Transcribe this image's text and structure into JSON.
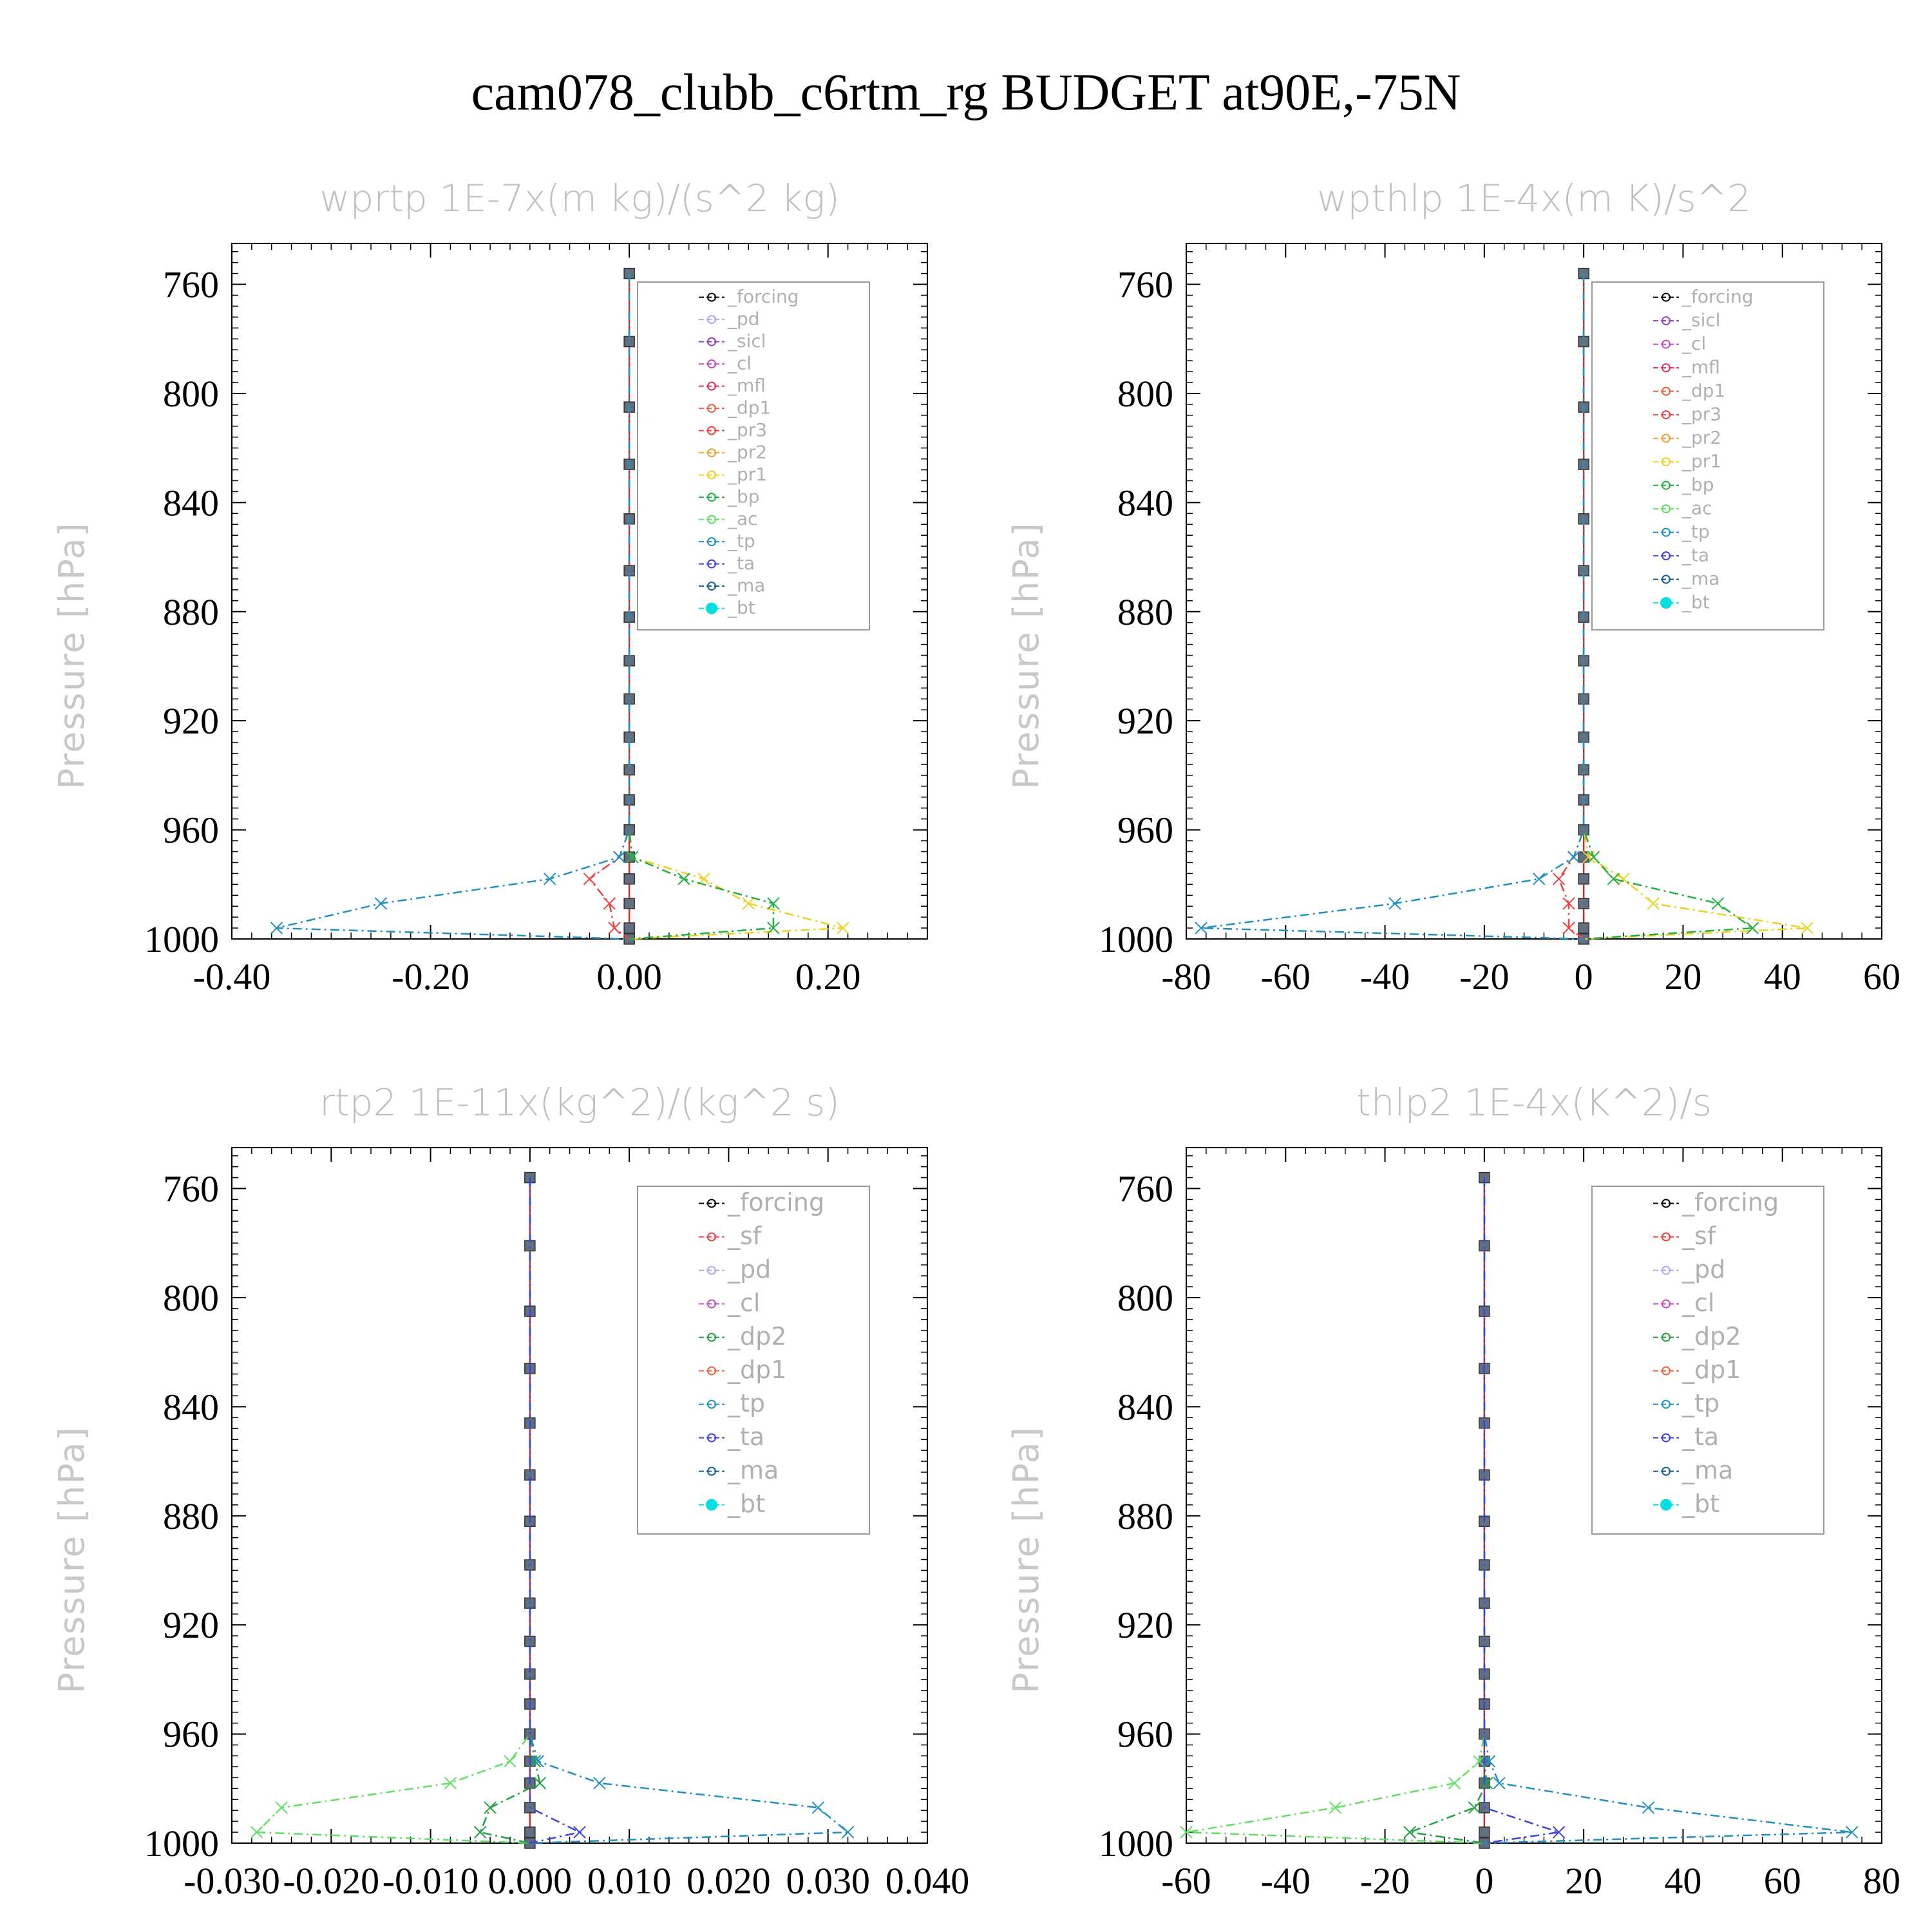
{
  "title": "cam078_clubb_c6rtm_rg  BUDGET at90E,-75N",
  "colors": {
    "forcing": "#000000",
    "pd": "#b0a8e8",
    "sicl": "#9040c0",
    "cl": "#c050c0",
    "mfl": "#e03060",
    "dp1": "#f06040",
    "pr3": "#f04040",
    "pr2": "#f0a030",
    "pr1": "#f0d020",
    "bp": "#20b040",
    "ac": "#60e060",
    "tp": "#2090c0",
    "ta": "#4040e0",
    "ma": "#106090",
    "bt": "#00e0e0",
    "sf": "#f04040",
    "dp2": "#20a040"
  },
  "chart_data": [
    {
      "type": "line",
      "title": "wprtp  1E-7x(m kg)/(s^2 kg)",
      "ylabel": "Pressure [hPa]",
      "ylim": [
        1000,
        745
      ],
      "yticks": [
        "760",
        "800",
        "840",
        "880",
        "920",
        "960",
        "1000"
      ],
      "xlim": [
        -0.4,
        0.3
      ],
      "xticks": [
        "-0.40",
        "-0.20",
        "0.00",
        "0.20"
      ],
      "xtick_values": [
        -0.4,
        -0.2,
        0.0,
        0.2
      ],
      "levels": [
        756,
        781,
        805,
        826,
        846,
        865,
        882,
        898,
        912,
        926,
        938,
        949,
        960,
        970,
        978,
        987,
        996,
        1000
      ],
      "legend": [
        "_forcing",
        "_pd",
        "_sicl",
        "_cl",
        "_mfl",
        "_dp1",
        "_pr3",
        "_pr2",
        "_pr1",
        "_bp",
        "_ac",
        "_tp",
        "_ta",
        "_ma",
        "_bt"
      ],
      "series": [
        {
          "name": "_pr1",
          "color_key": "pr1",
          "values": [
            0,
            0,
            0,
            0,
            0,
            0,
            0,
            0,
            0,
            0,
            0,
            0,
            0,
            0.003,
            0.075,
            0.12,
            0.215,
            0
          ]
        },
        {
          "name": "_bp",
          "color_key": "bp",
          "values": [
            0,
            0,
            0,
            0,
            0,
            0,
            0,
            0,
            0,
            0,
            0,
            0,
            0,
            0.003,
            0.055,
            0.145,
            0.145,
            0
          ]
        },
        {
          "name": "_pr3",
          "color_key": "pr3",
          "values": [
            0,
            0,
            0,
            0,
            0,
            0,
            0,
            0,
            0,
            0,
            0,
            0,
            0,
            -0.01,
            -0.04,
            -0.02,
            -0.015,
            0
          ]
        },
        {
          "name": "_tp",
          "color_key": "tp",
          "values": [
            0,
            0,
            0,
            0,
            0,
            0,
            0,
            0,
            0,
            0,
            0,
            0,
            0,
            -0.01,
            -0.08,
            -0.25,
            -0.355,
            0
          ]
        }
      ]
    },
    {
      "type": "line",
      "title": "wpthlp  1E-4x(m K)/s^2",
      "ylabel": "Pressure [hPa]",
      "ylim": [
        1000,
        745
      ],
      "yticks": [
        "760",
        "800",
        "840",
        "880",
        "920",
        "960",
        "1000"
      ],
      "xlim": [
        -80,
        60
      ],
      "xticks": [
        "-80",
        "-60",
        "-40",
        "-20",
        "0",
        "20",
        "40",
        "60"
      ],
      "xtick_values": [
        -80,
        -60,
        -40,
        -20,
        0,
        20,
        40,
        60
      ],
      "levels": [
        756,
        781,
        805,
        826,
        846,
        865,
        882,
        898,
        912,
        926,
        938,
        949,
        960,
        970,
        978,
        987,
        996,
        1000
      ],
      "legend": [
        "_forcing",
        "_sicl",
        "_cl",
        "_mfl",
        "_dp1",
        "_pr3",
        "_pr2",
        "_pr1",
        "_bp",
        "_ac",
        "_tp",
        "_ta",
        "_ma",
        "_bt"
      ],
      "series": [
        {
          "name": "_pr1",
          "color_key": "pr1",
          "values": [
            0,
            0,
            0,
            0,
            0,
            0,
            0,
            0,
            0,
            0,
            0,
            0,
            0,
            1,
            8,
            14,
            45,
            0
          ]
        },
        {
          "name": "_bp",
          "color_key": "bp",
          "values": [
            0,
            0,
            0,
            0,
            0,
            0,
            0,
            0,
            0,
            0,
            0,
            0,
            0,
            2,
            6,
            27,
            34,
            0
          ]
        },
        {
          "name": "_pr3",
          "color_key": "pr3",
          "values": [
            0,
            0,
            0,
            0,
            0,
            0,
            0,
            0,
            0,
            0,
            0,
            0,
            0,
            -2,
            -5,
            -3,
            -3,
            0
          ]
        },
        {
          "name": "_tp",
          "color_key": "tp",
          "values": [
            0,
            0,
            0,
            0,
            0,
            0,
            0,
            0,
            0,
            0,
            0,
            0,
            0,
            -2,
            -9,
            -38,
            -77,
            0
          ]
        }
      ]
    },
    {
      "type": "line",
      "title": "rtp2  1E-11x(kg^2)/(kg^2 s)",
      "ylabel": "Pressure [hPa]",
      "ylim": [
        1000,
        745
      ],
      "yticks": [
        "760",
        "800",
        "840",
        "880",
        "920",
        "960",
        "1000"
      ],
      "xlim": [
        -0.03,
        0.04
      ],
      "xticks": [
        "-0.030",
        "-0.020",
        "-0.010",
        "0.000",
        "0.010",
        "0.020",
        "0.030",
        "0.040"
      ],
      "xtick_values": [
        -0.03,
        -0.02,
        -0.01,
        0.0,
        0.01,
        0.02,
        0.03,
        0.04
      ],
      "levels": [
        756,
        781,
        805,
        826,
        846,
        865,
        882,
        898,
        912,
        926,
        938,
        949,
        960,
        970,
        978,
        987,
        996,
        1000
      ],
      "legend": [
        "_forcing",
        "_sf",
        "_pd",
        "_cl",
        "_dp2",
        "_dp1",
        "_tp",
        "_ta",
        "_ma",
        "_bt"
      ],
      "series": [
        {
          "name": "_dp1",
          "color_key": "ac",
          "values": [
            0,
            0,
            0,
            0,
            0,
            0,
            0,
            0,
            0,
            0,
            0,
            0,
            0,
            -0.002,
            -0.008,
            -0.025,
            -0.0275,
            0
          ]
        },
        {
          "name": "_dp2",
          "color_key": "dp2",
          "values": [
            0,
            0,
            0,
            0,
            0,
            0,
            0,
            0,
            0,
            0,
            0,
            0,
            0,
            0.0005,
            0.001,
            -0.004,
            -0.005,
            0
          ]
        },
        {
          "name": "_tp",
          "color_key": "tp",
          "values": [
            0,
            0,
            0,
            0,
            0,
            0,
            0,
            0,
            0,
            0,
            0,
            0,
            0,
            0.0008,
            0.007,
            0.029,
            0.032,
            0
          ]
        },
        {
          "name": "_ta",
          "color_key": "ta",
          "values": [
            0,
            0,
            0,
            0,
            0,
            0,
            0,
            0,
            0,
            0,
            0,
            0,
            0,
            0,
            0,
            0,
            0.005,
            0
          ]
        }
      ]
    },
    {
      "type": "line",
      "title": "thlp2  1E-4x(K^2)/s",
      "ylabel": "Pressure [hPa]",
      "ylim": [
        1000,
        745
      ],
      "yticks": [
        "760",
        "800",
        "840",
        "880",
        "920",
        "960",
        "1000"
      ],
      "xlim": [
        -60,
        80
      ],
      "xticks": [
        "-60",
        "-40",
        "-20",
        "0",
        "20",
        "40",
        "60",
        "80"
      ],
      "xtick_values": [
        -60,
        -40,
        -20,
        0,
        20,
        40,
        60,
        80
      ],
      "levels": [
        756,
        781,
        805,
        826,
        846,
        865,
        882,
        898,
        912,
        926,
        938,
        949,
        960,
        970,
        978,
        987,
        996,
        1000
      ],
      "legend": [
        "_forcing",
        "_sf",
        "_pd",
        "_cl",
        "_dp2",
        "_dp1",
        "_tp",
        "_ta",
        "_ma",
        "_bt"
      ],
      "series": [
        {
          "name": "_dp1",
          "color_key": "ac",
          "values": [
            0,
            0,
            0,
            0,
            0,
            0,
            0,
            0,
            0,
            0,
            0,
            0,
            0,
            -1,
            -6,
            -30,
            -60,
            0
          ]
        },
        {
          "name": "_dp2",
          "color_key": "dp2",
          "values": [
            0,
            0,
            0,
            0,
            0,
            0,
            0,
            0,
            0,
            0,
            0,
            0,
            0,
            0,
            0.5,
            -2,
            -15,
            0
          ]
        },
        {
          "name": "_tp",
          "color_key": "tp",
          "values": [
            0,
            0,
            0,
            0,
            0,
            0,
            0,
            0,
            0,
            0,
            0,
            0,
            0,
            1,
            3,
            33,
            74,
            0
          ]
        },
        {
          "name": "_ta",
          "color_key": "ta",
          "values": [
            0,
            0,
            0,
            0,
            0,
            0,
            0,
            0,
            0,
            0,
            0,
            0,
            0,
            0,
            0,
            0,
            15,
            0
          ]
        }
      ]
    }
  ]
}
